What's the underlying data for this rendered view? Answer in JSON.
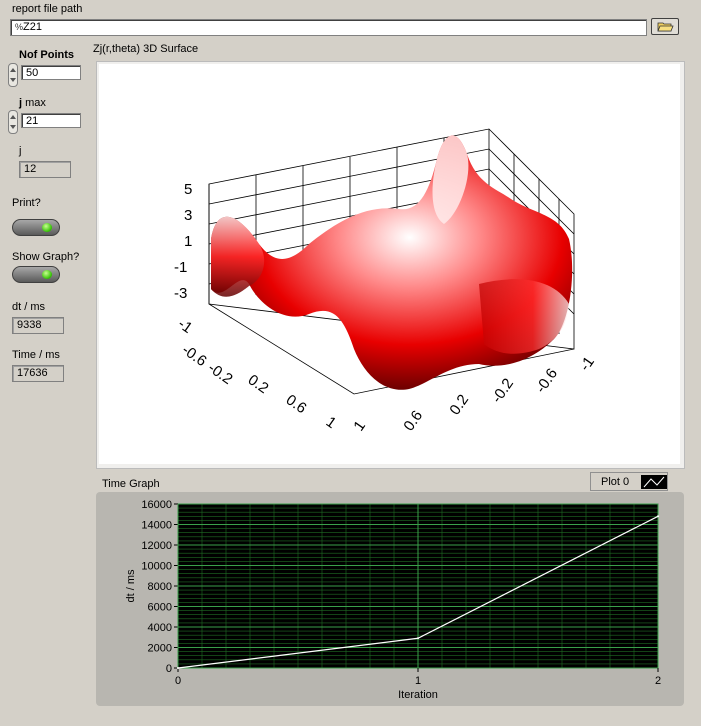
{
  "report": {
    "label": "report file path",
    "path": "Z21",
    "path_prefix": "%"
  },
  "nof_points": {
    "label": "Nof Points",
    "value": "50"
  },
  "j_max": {
    "label_bold": "j",
    "label_rest": " max",
    "value": "21"
  },
  "j": {
    "label": "j",
    "value": "12"
  },
  "print": {
    "label": "Print?"
  },
  "show_graph": {
    "label": "Show Graph?"
  },
  "dt": {
    "label": "dt / ms",
    "value": "9338"
  },
  "time": {
    "label": "Time / ms",
    "value": "17636"
  },
  "surface": {
    "title": "Zj(r,theta) 3D Surface",
    "z_ticks": [
      "5",
      "3",
      "1",
      "-1",
      "-3"
    ],
    "x_ticks": [
      "-1",
      "-0.6",
      "-0.2",
      "0.2",
      "0.6",
      "1"
    ],
    "y_ticks": [
      "1",
      "0.6",
      "0.2",
      "-0.2",
      "-0.6",
      "-1"
    ]
  },
  "time_graph": {
    "title": "Time Graph",
    "legend": "Plot 0",
    "chart_data": {
      "type": "line",
      "xlabel": "Iteration",
      "ylabel": "dt / ms",
      "x": [
        0,
        1,
        2
      ],
      "series": [
        {
          "name": "Plot 0",
          "values": [
            0,
            2900,
            14800
          ]
        }
      ],
      "xlim": [
        0,
        2
      ],
      "ylim": [
        0,
        16000
      ],
      "x_ticks": [
        "0",
        "1",
        "2"
      ],
      "y_ticks": [
        "0",
        "2000",
        "4000",
        "6000",
        "8000",
        "10000",
        "12000",
        "14000",
        "16000"
      ],
      "grid": true,
      "plot_background": "#000000",
      "line_color": "#ffffff",
      "grid_color": "#1f6b24"
    }
  }
}
